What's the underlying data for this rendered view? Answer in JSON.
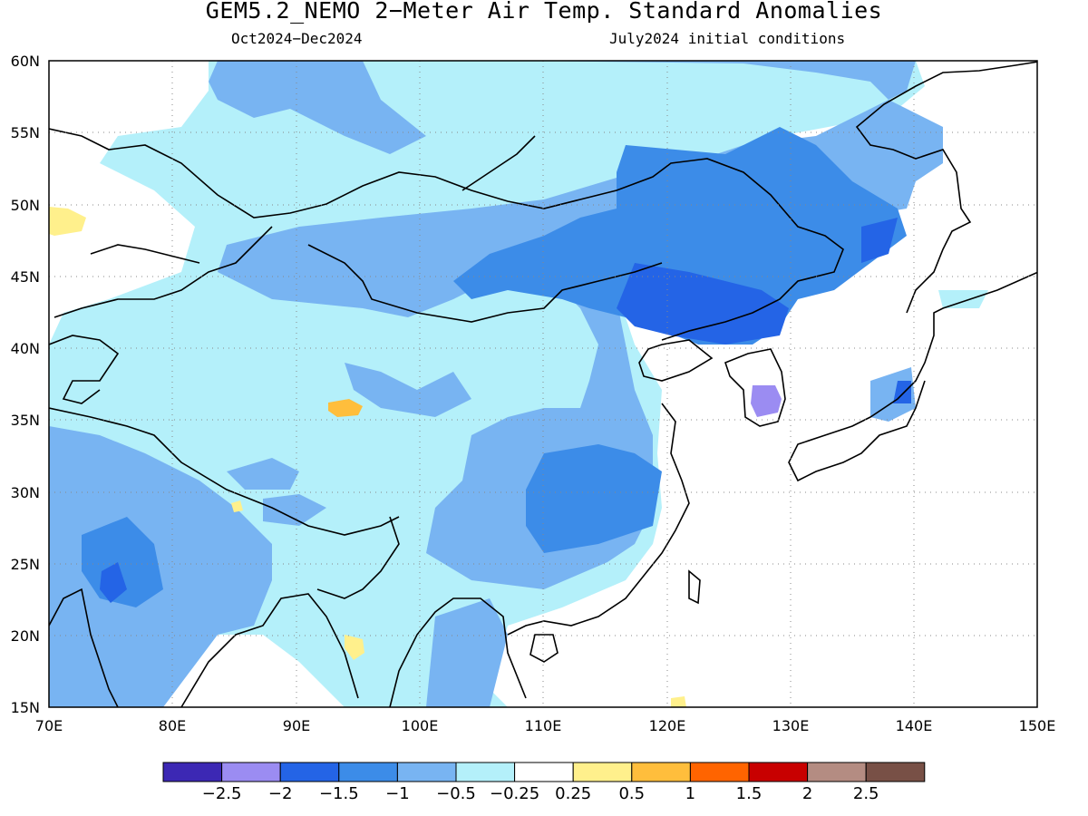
{
  "title": "GEM5.2_NEMO 2−Meter Air Temp. Standard Anomalies",
  "period": "Oct2024−Dec2024",
  "initial_conditions": "July2024 initial conditions",
  "map": {
    "lon_range": [
      70,
      150
    ],
    "lat_range": [
      15,
      60
    ],
    "lon_labels": [
      "70E",
      "80E",
      "90E",
      "100E",
      "110E",
      "120E",
      "130E",
      "140E",
      "150E"
    ],
    "lat_labels": [
      "60N",
      "55N",
      "50N",
      "45N",
      "40N",
      "35N",
      "30N",
      "25N",
      "20N",
      "15N"
    ],
    "gridlines": "dotted",
    "colorbar": {
      "colors": [
        "#3c28b4",
        "#9b8cf2",
        "#2464e6",
        "#3c8ce8",
        "#78b4f2",
        "#b4f0fa",
        "#ffffff",
        "#fff08c",
        "#ffbe3c",
        "#ff6400",
        "#c80000",
        "#b48c82",
        "#785046"
      ],
      "labels": [
        "−2.5",
        "−2",
        "−1.5",
        "−1",
        "−0.5",
        "−0.25",
        "0.25",
        "0.5",
        "1",
        "1.5",
        "2",
        "2.5"
      ]
    }
  }
}
